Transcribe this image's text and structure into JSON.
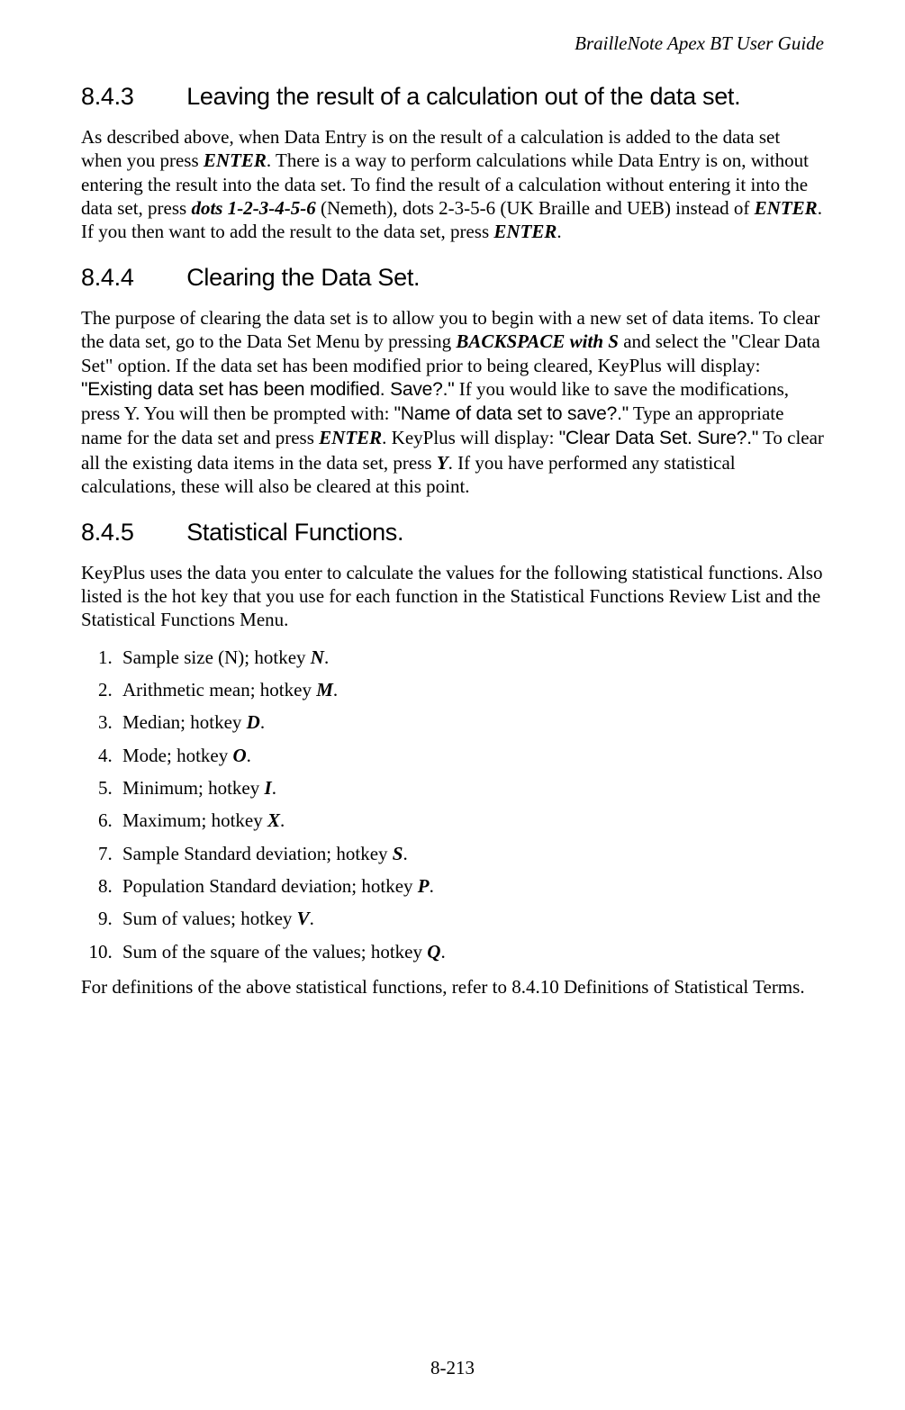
{
  "document": {
    "header": "BrailleNote Apex BT User Guide",
    "page_number": "8-213",
    "text_color": "#000000",
    "background_color": "#ffffff",
    "body_font": "Times New Roman",
    "heading_font": "Arial",
    "body_fontsize_pt": 16,
    "heading_fontsize_pt": 20
  },
  "sections": {
    "s843": {
      "number": "8.4.3",
      "title": "Leaving the result of a calculation out of the data set.",
      "p1a": "As described above, when Data Entry is on the result of a calculation is added to the data set when you press ",
      "p1b": "ENTER",
      "p1c": ". There is a way to perform calculations while Data Entry is on, without entering the result into the data set. To find the result of a calculation without entering it into the data set, press ",
      "p1d": "dots 1-2-3-4-5-6",
      "p1e": " (Nemeth), dots 2-3-5-6 (UK Braille and UEB) instead of ",
      "p1f": "ENTER",
      "p1g": ". If you then want to add the result to the data set, press ",
      "p1h": "ENTER",
      "p1i": "."
    },
    "s844": {
      "number": "8.4.4",
      "title": "Clearing the Data Set.",
      "p1a": "The purpose of clearing the data set is to allow you to begin with a new set of data items. To clear the data set, go to the Data Set Menu by pressing ",
      "p1b": "BACKSPACE with S",
      "p1c": " and select the \"Clear Data Set\" option. If the data set has been modified prior to being cleared, KeyPlus will display: ",
      "p1d": "\"Existing data set has been modified. Save?.\"",
      "p1e": " If you would like to save the modifications, press Y. You will then be prompted with: ",
      "p1f": "\"Name of data set to save?.\"",
      "p1g": " Type an appropriate name for the data set and press ",
      "p1h": "ENTER",
      "p1i": ". KeyPlus will display: ",
      "p1j": "\"Clear Data Set. Sure?.\"",
      "p1k": " To clear all the existing data items in the data set, press ",
      "p1l": "Y",
      "p1m": ". If you have performed any statistical calculations, these will also be cleared at this point."
    },
    "s845": {
      "number": "8.4.5",
      "title": "Statistical Functions.",
      "intro": "KeyPlus uses the data you enter to calculate the values for the following statistical functions. Also listed is the hot key that you use for each function in the Statistical Functions Review List and the Statistical Functions Menu.",
      "items": [
        {
          "pre": "Sample size (N); hotkey ",
          "key": "N",
          "post": "."
        },
        {
          "pre": "Arithmetic mean; hotkey ",
          "key": "M",
          "post": "."
        },
        {
          "pre": "Median; hotkey ",
          "key": "D",
          "post": "."
        },
        {
          "pre": "Mode; hotkey ",
          "key": "O",
          "post": "."
        },
        {
          "pre": "Minimum; hotkey ",
          "key": "I",
          "post": "."
        },
        {
          "pre": "Maximum; hotkey ",
          "key": "X",
          "post": "."
        },
        {
          "pre": "Sample Standard deviation; hotkey ",
          "key": "S",
          "post": "."
        },
        {
          "pre": "Population Standard deviation; hotkey ",
          "key": "P",
          "post": "."
        },
        {
          "pre": "Sum of values; hotkey ",
          "key": "V",
          "post": "."
        },
        {
          "pre": "Sum of the square of the values; hotkey ",
          "key": "Q",
          "post": "."
        }
      ],
      "outro": "For definitions of the above statistical functions, refer to 8.4.10 Definitions of Statistical Terms."
    }
  }
}
